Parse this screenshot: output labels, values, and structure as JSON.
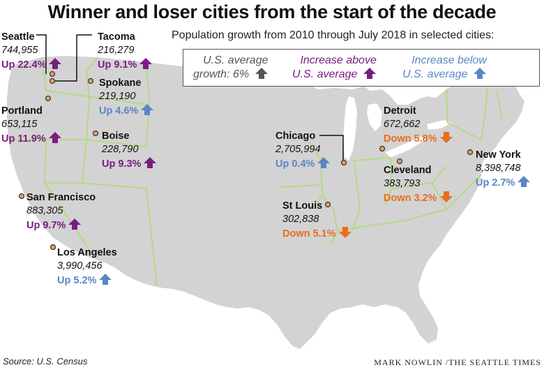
{
  "title": "Winner and loser cities from the start of the decade",
  "subtitle": "Population growth from 2010 through July 2018 in selected cities:",
  "legend": {
    "avg_line1": "U.S. average",
    "avg_line2": "growth: 6%",
    "above_line1": "Increase above",
    "above_line2": "U.S. average",
    "below_line1": "Increase below",
    "below_line2": "U.S. average"
  },
  "colors": {
    "above": "#7a1d83",
    "below": "#5b86c5",
    "down": "#ea6c1e",
    "average": "#555555",
    "land": "#d3d3d3",
    "border": "#b7d98b"
  },
  "cities": [
    {
      "id": "seattle",
      "name": "Seattle",
      "population": "744,955",
      "change": "Up 22.4%",
      "category": "above"
    },
    {
      "id": "tacoma",
      "name": "Tacoma",
      "population": "216,279",
      "change": "Up 9.1%",
      "category": "above"
    },
    {
      "id": "spokane",
      "name": "Spokane",
      "population": "219,190",
      "change": "Up 4.6%",
      "category": "below"
    },
    {
      "id": "portland",
      "name": "Portland",
      "population": "653,115",
      "change": "Up 11.9%",
      "category": "above"
    },
    {
      "id": "boise",
      "name": "Boise",
      "population": "228,790",
      "change": "Up 9.3%",
      "category": "above"
    },
    {
      "id": "san-francisco",
      "name": "San Francisco",
      "population": "883,305",
      "change": "Up 9.7%",
      "category": "above"
    },
    {
      "id": "los-angeles",
      "name": "Los Angeles",
      "population": "3,990,456",
      "change": "Up 5.2%",
      "category": "below"
    },
    {
      "id": "chicago",
      "name": "Chicago",
      "population": "2,705,994",
      "change": "Up 0.4%",
      "category": "below"
    },
    {
      "id": "st-louis",
      "name": "St Louis",
      "population": "302,838",
      "change": "Down 5.1%",
      "category": "down"
    },
    {
      "id": "detroit",
      "name": "Detroit",
      "population": "672,662",
      "change": "Down 5.8%",
      "category": "down"
    },
    {
      "id": "cleveland",
      "name": "Cleveland",
      "population": "383,793",
      "change": "Down 3.2%",
      "category": "down"
    },
    {
      "id": "new-york",
      "name": "New York",
      "population": "8,398,748",
      "change": "Up 2.7%",
      "category": "below"
    }
  ],
  "source": "Source: U.S. Census",
  "credit": "MARK NOWLIN /THE SEATTLE TIMES"
}
